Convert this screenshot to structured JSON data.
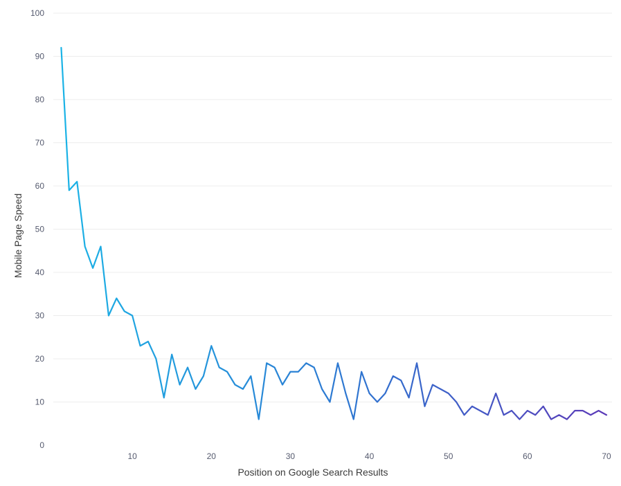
{
  "chart_data": {
    "type": "line",
    "title": "",
    "xlabel": "Position on Google Search Results",
    "ylabel": "Mobile Page Speed",
    "xlim": [
      0,
      70
    ],
    "ylim": [
      0,
      100
    ],
    "x_ticks": [
      10,
      20,
      30,
      40,
      50,
      60,
      70
    ],
    "y_ticks": [
      0,
      10,
      20,
      30,
      40,
      50,
      60,
      70,
      80,
      90,
      100
    ],
    "grid": true,
    "line_gradient": [
      "#1ab3e6",
      "#2f74d0",
      "#5b3ab8"
    ],
    "series": [
      {
        "x": [
          1,
          2,
          3,
          4,
          5,
          6,
          7,
          8,
          9,
          10,
          11,
          12,
          13,
          14,
          15,
          16,
          17,
          18,
          19,
          20,
          21,
          22,
          23,
          24,
          25,
          26,
          27,
          28,
          29,
          30,
          31,
          32,
          33,
          34,
          35,
          36,
          37,
          38,
          39,
          40,
          41,
          42,
          43,
          44,
          45,
          46,
          47,
          48,
          49,
          50,
          51,
          52,
          53,
          54,
          55,
          56,
          57,
          58,
          59,
          60,
          61,
          62,
          63,
          64,
          65,
          66,
          67,
          68,
          69,
          70
        ],
        "values": [
          92,
          59,
          61,
          46,
          41,
          46,
          30,
          34,
          31,
          30,
          23,
          24,
          20,
          11,
          21,
          14,
          18,
          13,
          16,
          23,
          18,
          17,
          14,
          13,
          16,
          6,
          19,
          18,
          14,
          17,
          17,
          19,
          18,
          13,
          10,
          19,
          12,
          6,
          17,
          12,
          10,
          12,
          16,
          15,
          11,
          19,
          9,
          14,
          13,
          12,
          10,
          7,
          9,
          8,
          7,
          12,
          7,
          8,
          6,
          8,
          7,
          9,
          6,
          7,
          6,
          8,
          8,
          7,
          8,
          7
        ]
      }
    ]
  }
}
